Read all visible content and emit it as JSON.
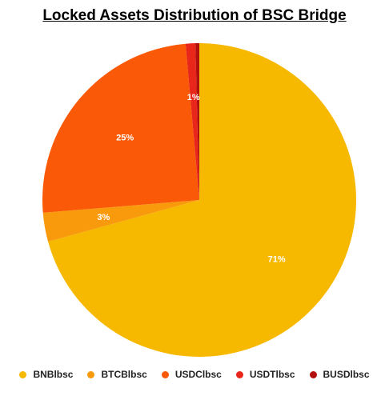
{
  "chart_data": {
    "type": "pie",
    "title": "Locked Assets Distribution of BSC Bridge",
    "slices": [
      {
        "label": "BNBlbsc",
        "value": 71,
        "display": "71%",
        "color": "#F7B800"
      },
      {
        "label": "BTCBlbsc",
        "value": 3,
        "display": "3%",
        "color": "#F99A0C"
      },
      {
        "label": "USDClbsc",
        "value": 25,
        "display": "25%",
        "color": "#FA5A07"
      },
      {
        "label": "USDTlbsc",
        "value": 1,
        "display": "1%",
        "color": "#E8261A"
      },
      {
        "label": "BUSDlbsc",
        "value": 0.4,
        "display": "",
        "color": "#B30F0F"
      }
    ],
    "legend_position": "bottom"
  }
}
